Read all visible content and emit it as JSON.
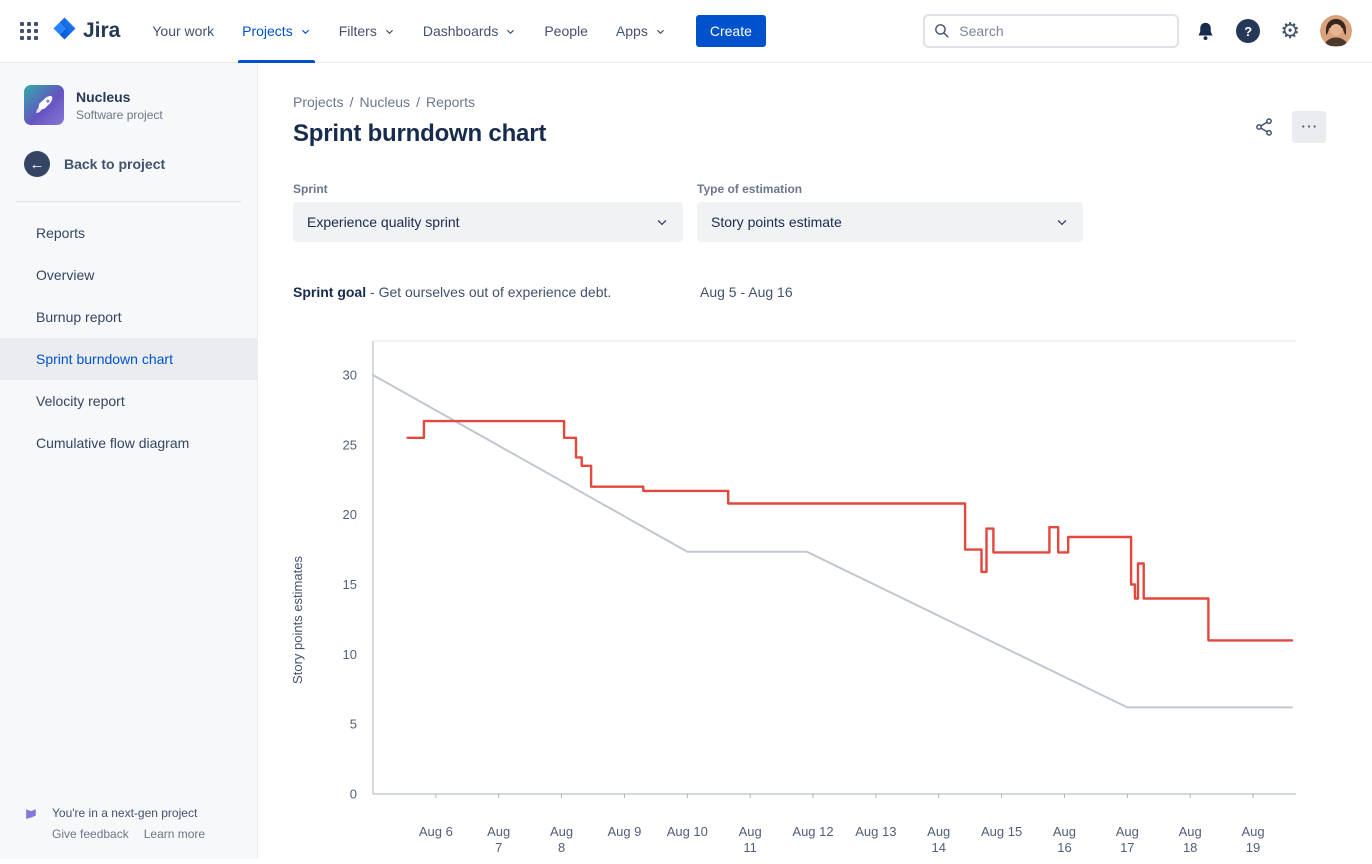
{
  "topbar": {
    "logo_text": "Jira",
    "nav": [
      {
        "label": "Your work",
        "dropdown": false,
        "active": false
      },
      {
        "label": "Projects",
        "dropdown": true,
        "active": true
      },
      {
        "label": "Filters",
        "dropdown": true,
        "active": false
      },
      {
        "label": "Dashboards",
        "dropdown": true,
        "active": false
      },
      {
        "label": "People",
        "dropdown": false,
        "active": false
      },
      {
        "label": "Apps",
        "dropdown": true,
        "active": false
      }
    ],
    "create_label": "Create",
    "search_placeholder": "Search"
  },
  "icons": {
    "app_switcher": "grid-dots",
    "search": "magnifier",
    "notifications": "bell",
    "help": "question-mark",
    "settings": "gear",
    "share": "share-nodes",
    "more": "ellipsis",
    "back": "arrow-left",
    "project": "rocket",
    "next_gen": "flag",
    "dropdown": "chevron-down"
  },
  "sidebar": {
    "project_name": "Nucleus",
    "project_type": "Software project",
    "back_label": "Back to project",
    "items": [
      {
        "label": "Reports",
        "selected": false
      },
      {
        "label": "Overview",
        "selected": false
      },
      {
        "label": "Burnup report",
        "selected": false
      },
      {
        "label": "Sprint burndown chart",
        "selected": true
      },
      {
        "label": "Velocity report",
        "selected": false
      },
      {
        "label": "Cumulative flow diagram",
        "selected": false
      }
    ],
    "footer_note": "You're in a next-gen project",
    "footer_links": [
      "Give feedback",
      "Learn more"
    ]
  },
  "main": {
    "breadcrumb": [
      "Projects",
      "Nucleus",
      "Reports"
    ],
    "title": "Sprint burndown chart",
    "more_label": "⋯",
    "filters": [
      {
        "label": "Sprint",
        "value": "Experience quality sprint"
      },
      {
        "label": "Type of estimation",
        "value": "Story points estimate"
      }
    ],
    "sprint_goal_label": "Sprint goal",
    "sprint_goal_text": "- Get ourselves out of experience debt.",
    "date_range": "Aug 5 - Aug 16"
  },
  "chart_data": {
    "type": "line",
    "title": "Sprint burndown chart",
    "ylabel": "Story points estimates",
    "yticks": [
      0,
      5,
      10,
      15,
      20,
      25,
      30
    ],
    "ylim": [
      0,
      32.4
    ],
    "xlim": [
      0,
      14.65
    ],
    "grid": false,
    "legend": "none",
    "xticks": [
      {
        "x": 1,
        "lines": [
          "Aug 6"
        ]
      },
      {
        "x": 2,
        "lines": [
          "Aug",
          "7"
        ]
      },
      {
        "x": 3,
        "lines": [
          "Aug",
          "8"
        ]
      },
      {
        "x": 4,
        "lines": [
          "Aug 9"
        ]
      },
      {
        "x": 5,
        "lines": [
          "Aug 10"
        ]
      },
      {
        "x": 6,
        "lines": [
          "Aug",
          "11"
        ]
      },
      {
        "x": 7,
        "lines": [
          "Aug 12"
        ]
      },
      {
        "x": 8,
        "lines": [
          "Aug 13"
        ]
      },
      {
        "x": 9,
        "lines": [
          "Aug",
          "14"
        ]
      },
      {
        "x": 10,
        "lines": [
          "Aug 15"
        ]
      },
      {
        "x": 11,
        "lines": [
          "Aug",
          "16"
        ]
      },
      {
        "x": 12,
        "lines": [
          "Aug",
          "17"
        ]
      },
      {
        "x": 13,
        "lines": [
          "Aug",
          "18"
        ]
      },
      {
        "x": 14,
        "lines": [
          "Aug",
          "19"
        ]
      }
    ],
    "series": [
      {
        "name": "Guideline",
        "color": "#c1c7d0",
        "width": 2,
        "points": [
          [
            0,
            30
          ],
          [
            5,
            17.35
          ],
          [
            6.9,
            17.35
          ],
          [
            12,
            6.2
          ],
          [
            14.62,
            6.2
          ]
        ]
      },
      {
        "name": "Remaining work",
        "color": "#e2483d",
        "width": 2.4,
        "points": [
          [
            0.55,
            25.5
          ],
          [
            0.81,
            25.5
          ],
          [
            0.81,
            26.7
          ],
          [
            3.04,
            26.7
          ],
          [
            3.04,
            25.5
          ],
          [
            3.23,
            25.5
          ],
          [
            3.23,
            24.1
          ],
          [
            3.32,
            24.1
          ],
          [
            3.32,
            23.5
          ],
          [
            3.47,
            23.5
          ],
          [
            3.47,
            22.0
          ],
          [
            4.3,
            22.0
          ],
          [
            4.3,
            21.7
          ],
          [
            5.65,
            21.7
          ],
          [
            5.65,
            20.8
          ],
          [
            9.42,
            20.8
          ],
          [
            9.42,
            17.5
          ],
          [
            9.68,
            17.5
          ],
          [
            9.68,
            15.9
          ],
          [
            9.76,
            15.9
          ],
          [
            9.76,
            19.0
          ],
          [
            9.87,
            19.0
          ],
          [
            9.87,
            17.3
          ],
          [
            10.76,
            17.3
          ],
          [
            10.76,
            19.1
          ],
          [
            10.9,
            19.1
          ],
          [
            10.9,
            17.3
          ],
          [
            11.06,
            17.3
          ],
          [
            11.06,
            18.4
          ],
          [
            12.06,
            18.4
          ],
          [
            12.06,
            15.0
          ],
          [
            12.12,
            15.0
          ],
          [
            12.12,
            14.0
          ],
          [
            12.17,
            14.0
          ],
          [
            12.17,
            16.5
          ],
          [
            12.26,
            16.5
          ],
          [
            12.26,
            14.0
          ],
          [
            13.29,
            14.0
          ],
          [
            13.29,
            11.0
          ],
          [
            14.62,
            11.0
          ]
        ]
      }
    ]
  }
}
